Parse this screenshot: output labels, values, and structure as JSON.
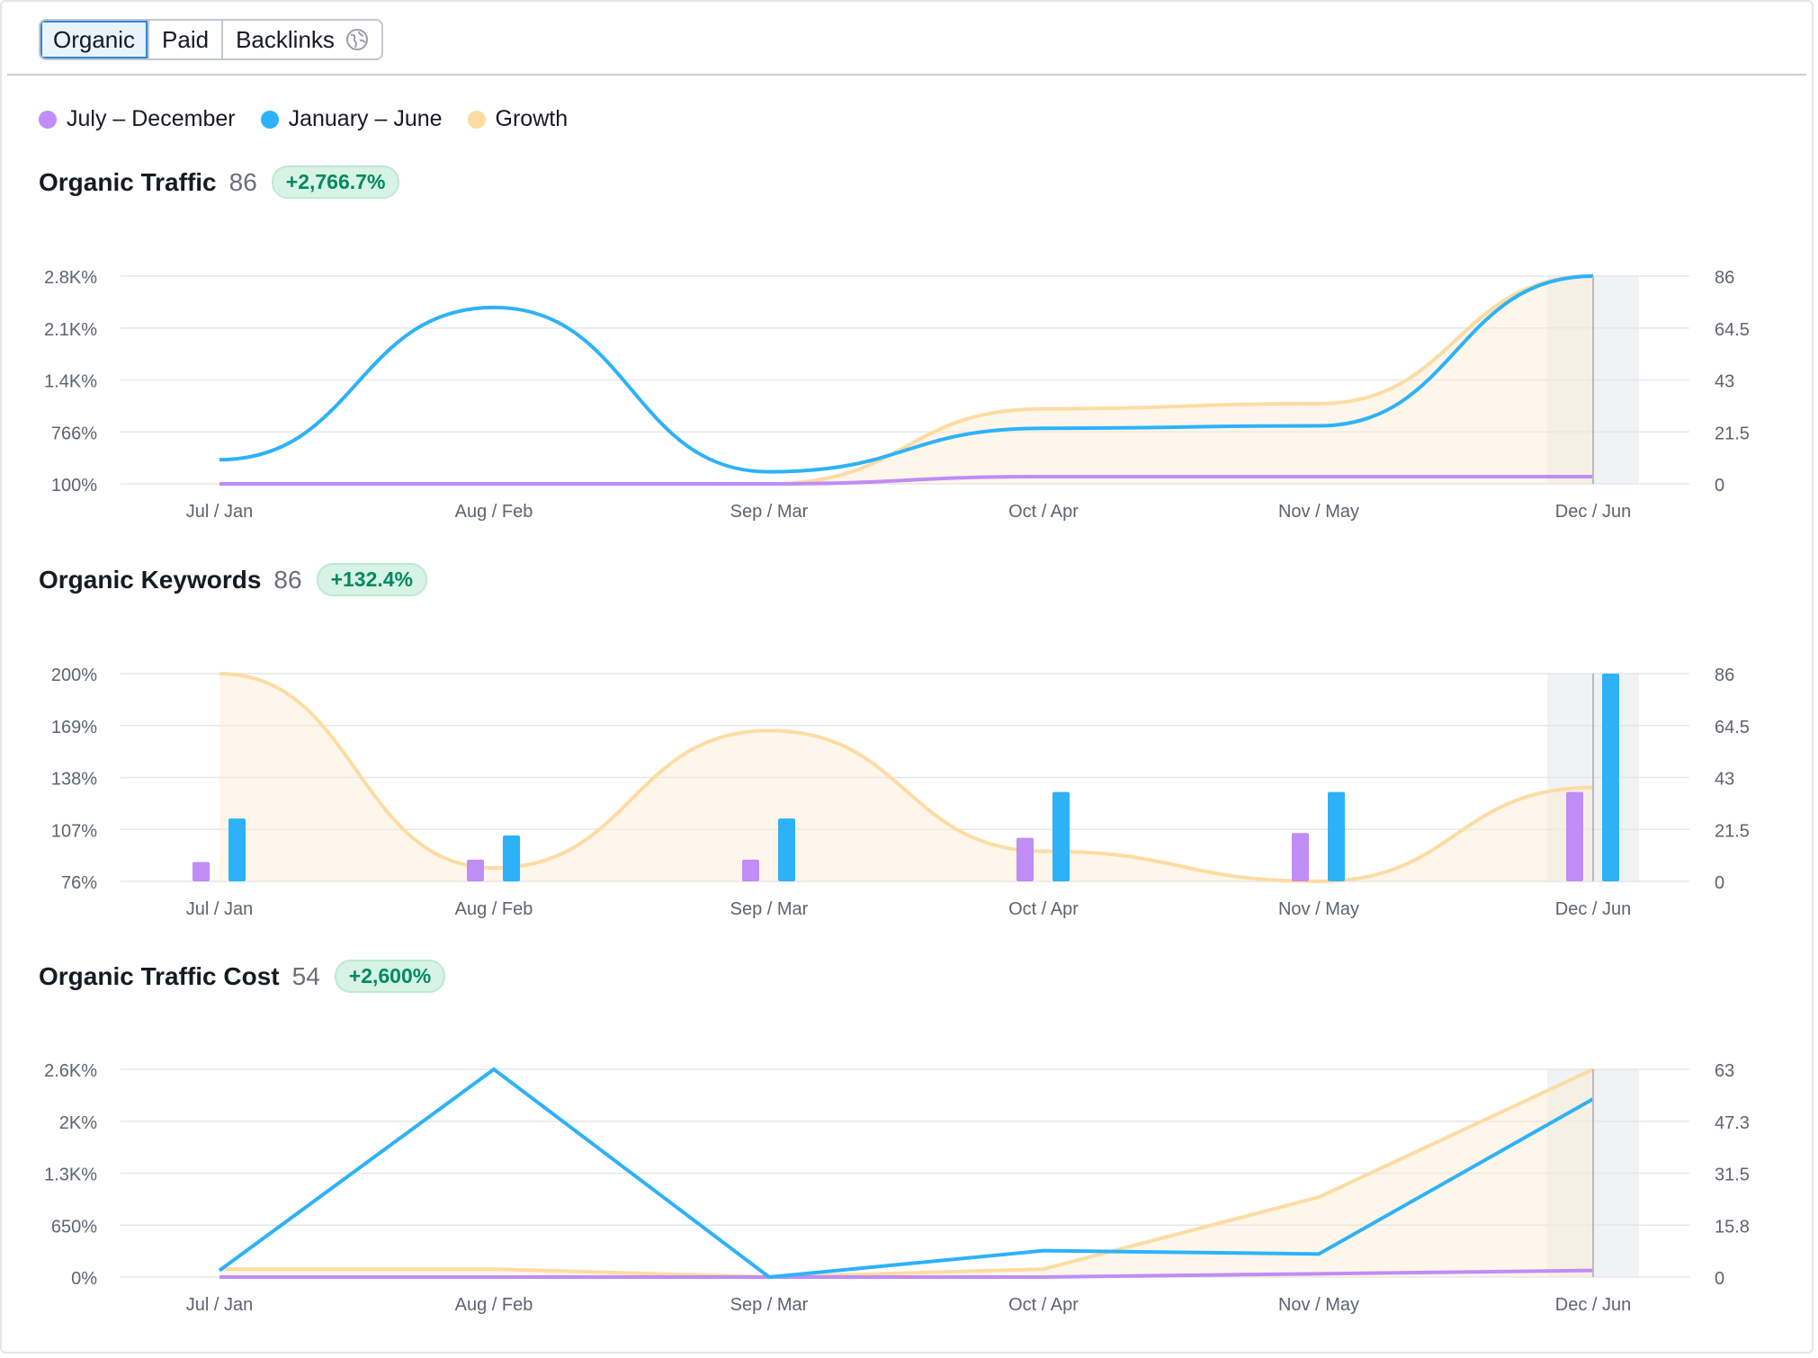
{
  "tabs": [
    {
      "label": "Organic",
      "active": true
    },
    {
      "label": "Paid",
      "active": false
    },
    {
      "label": "Backlinks",
      "active": false,
      "icon": "globe-icon"
    }
  ],
  "legend": [
    {
      "label": "July – December",
      "color": "#c08cf5"
    },
    {
      "label": "January – June",
      "color": "#2db2f7"
    },
    {
      "label": "Growth",
      "color": "#fddca3"
    }
  ],
  "sections": [
    {
      "title": "Organic Traffic",
      "value": "86",
      "change": "+2,766.7%"
    },
    {
      "title": "Organic Keywords",
      "value": "86",
      "change": "+132.4%"
    },
    {
      "title": "Organic Traffic Cost",
      "value": "54",
      "change": "+2,600%"
    }
  ],
  "chart_data": [
    {
      "type": "line",
      "categories": [
        "Jul / Jan",
        "Aug / Feb",
        "Sep / Mar",
        "Oct / Apr",
        "Nov / May",
        "Dec / Jun"
      ],
      "left_ticks": [
        "100%",
        "766%",
        "1.4K%",
        "2.1K%",
        "2.8K%"
      ],
      "right_ticks": [
        "0",
        "21.5",
        "43",
        "64.5",
        "86"
      ],
      "ylim_right": [
        0,
        86
      ],
      "ylim_left": [
        0,
        2767
      ],
      "series": [
        {
          "name": "July – December",
          "axis": "right",
          "values": [
            0,
            0,
            0,
            3,
            3,
            3
          ]
        },
        {
          "name": "January – June",
          "axis": "right",
          "values": [
            10,
            73,
            5,
            23,
            24,
            86
          ]
        },
        {
          "name": "Growth",
          "axis": "left",
          "values": [
            0,
            0,
            0,
            1000,
            1067,
            2767
          ]
        }
      ],
      "highlight": "Dec / Jun",
      "grid": true
    },
    {
      "type": "bar",
      "categories": [
        "Jul / Jan",
        "Aug / Feb",
        "Sep / Mar",
        "Oct / Apr",
        "Nov / May",
        "Dec / Jun"
      ],
      "left_ticks": [
        "76%",
        "107%",
        "138%",
        "169%",
        "200%"
      ],
      "right_ticks": [
        "0",
        "21.5",
        "43",
        "64.5",
        "86"
      ],
      "ylim_right": [
        0,
        86
      ],
      "ylim_left": [
        76,
        200
      ],
      "series": [
        {
          "name": "July – December",
          "axis": "right",
          "values": [
            8,
            9,
            9,
            18,
            20,
            37
          ]
        },
        {
          "name": "January – June",
          "axis": "right",
          "values": [
            26,
            19,
            26,
            37,
            37,
            86
          ]
        },
        {
          "name": "Growth",
          "axis": "left",
          "values": [
            200,
            84,
            166,
            94,
            76,
            132
          ]
        }
      ],
      "highlight": "Dec / Jun",
      "grid": true
    },
    {
      "type": "line",
      "categories": [
        "Jul / Jan",
        "Aug / Feb",
        "Sep / Mar",
        "Oct / Apr",
        "Nov / May",
        "Dec / Jun"
      ],
      "left_ticks": [
        "0%",
        "650%",
        "1.3K%",
        "2K%",
        "2.6K%"
      ],
      "right_ticks": [
        "0",
        "15.8",
        "31.5",
        "47.3",
        "63"
      ],
      "ylim_right": [
        0,
        63
      ],
      "ylim_left": [
        0,
        2600
      ],
      "series": [
        {
          "name": "July – December",
          "axis": "right",
          "values": [
            0,
            0,
            0,
            0,
            1,
            2
          ]
        },
        {
          "name": "January – June",
          "axis": "right",
          "values": [
            2,
            63,
            0,
            8,
            7,
            54
          ]
        },
        {
          "name": "Growth",
          "axis": "left",
          "values": [
            100,
            100,
            0,
            100,
            1000,
            2600
          ]
        }
      ],
      "highlight": "Dec / Jun",
      "grid": true
    }
  ]
}
